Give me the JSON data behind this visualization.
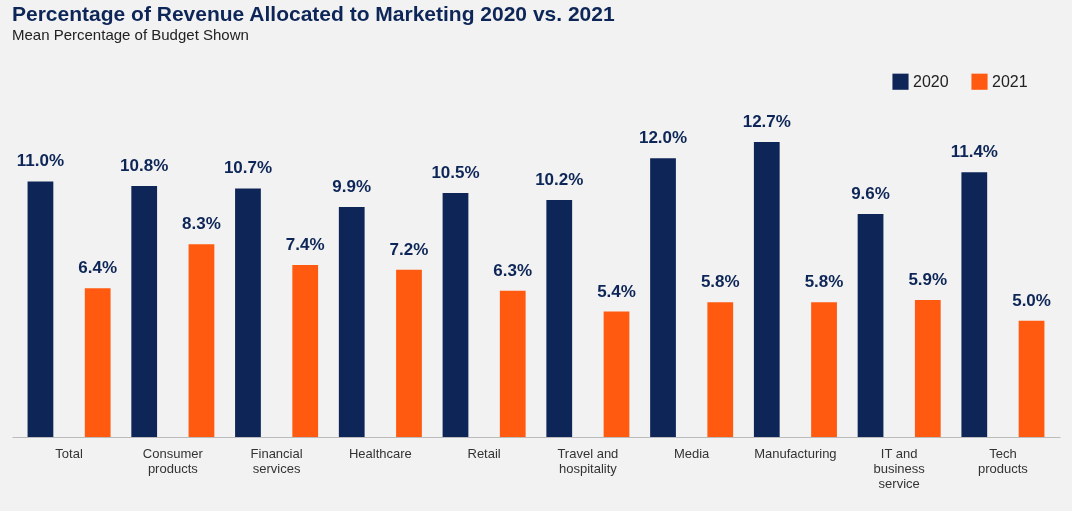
{
  "chart_data": {
    "type": "bar",
    "title": "Percentage of Revenue Allocated to Marketing 2020 vs. 2021",
    "subtitle": "Mean Percentage of Budget Shown",
    "categories": [
      "Total",
      "Consumer products",
      "Financial services",
      "Healthcare",
      "Retail",
      "Travel and hospitality",
      "Media",
      "Manufacturing",
      "IT and business service",
      "Tech products"
    ],
    "series": [
      {
        "name": "2020",
        "color": "#0d2657",
        "values": [
          11.0,
          10.8,
          10.7,
          9.9,
          10.5,
          10.2,
          12.0,
          12.7,
          9.6,
          11.4
        ],
        "value_labels": [
          "11.0%",
          "10.8%",
          "10.7%",
          "9.9%",
          "10.5%",
          "10.2%",
          "12.0%",
          "12.7%",
          "9.6%",
          "11.4%"
        ]
      },
      {
        "name": "2021",
        "color": "#ff5a0f",
        "values": [
          6.4,
          8.3,
          7.4,
          7.2,
          6.3,
          5.4,
          5.8,
          5.8,
          5.9,
          5.0
        ],
        "value_labels": [
          "6.4%",
          "8.3%",
          "7.4%",
          "7.2%",
          "6.3%",
          "5.4%",
          "5.8%",
          "5.8%",
          "5.9%",
          "5.0%"
        ]
      }
    ],
    "legend": "top right",
    "grid": false
  }
}
